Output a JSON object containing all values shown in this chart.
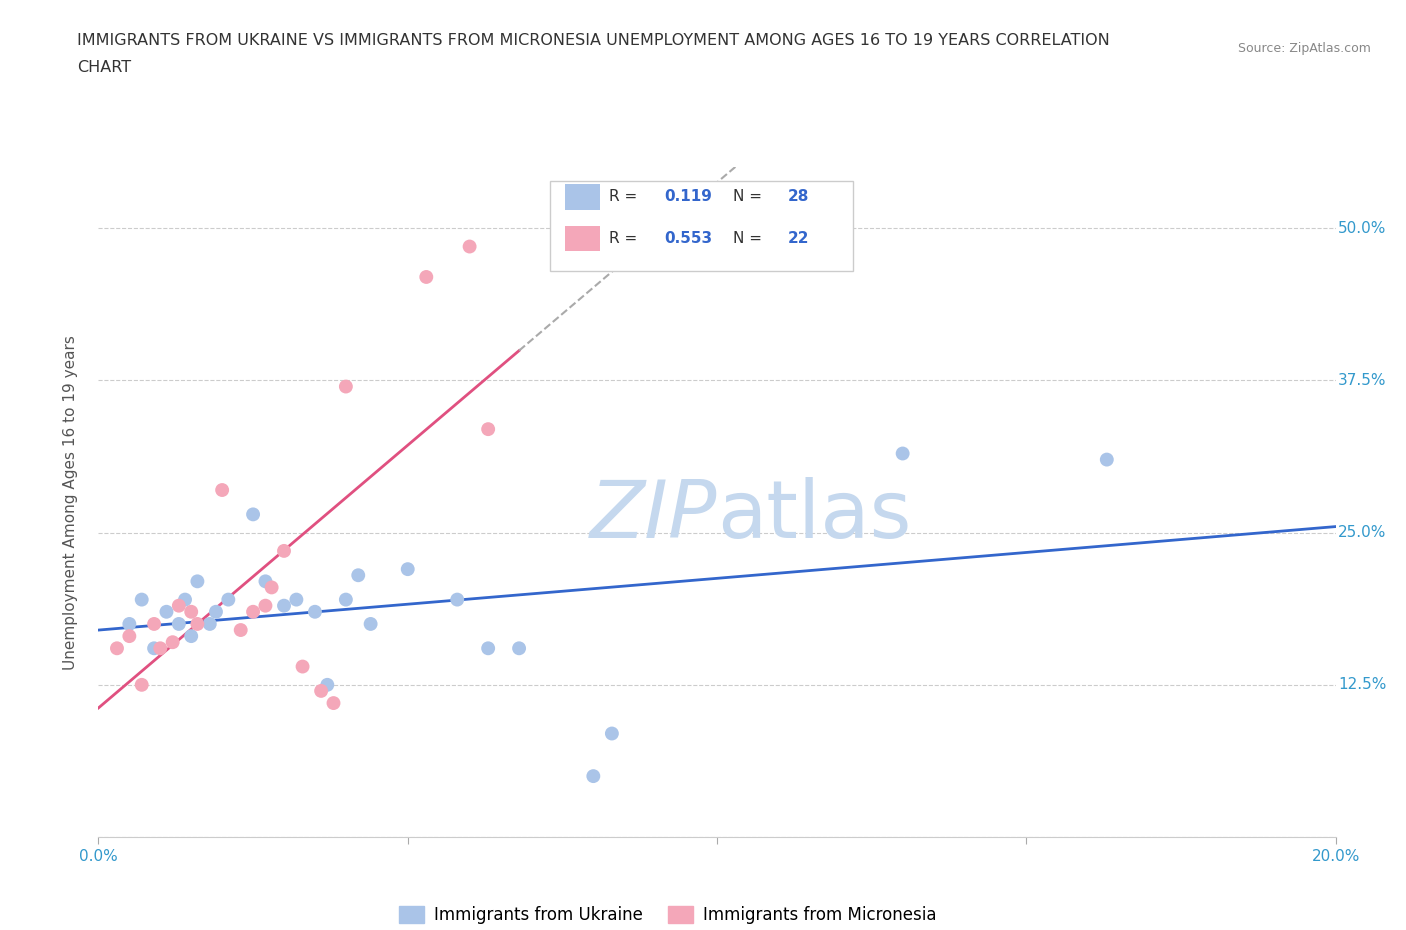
{
  "title_line1": "IMMIGRANTS FROM UKRAINE VS IMMIGRANTS FROM MICRONESIA UNEMPLOYMENT AMONG AGES 16 TO 19 YEARS CORRELATION",
  "title_line2": "CHART",
  "source": "Source: ZipAtlas.com",
  "ylabel": "Unemployment Among Ages 16 to 19 years",
  "xlim": [
    0.0,
    0.2
  ],
  "ylim": [
    0.0,
    0.55
  ],
  "xticks": [
    0.0,
    0.05,
    0.1,
    0.15,
    0.2
  ],
  "xticklabels": [
    "0.0%",
    "",
    "",
    "",
    "20.0%"
  ],
  "yticks": [
    0.0,
    0.125,
    0.25,
    0.375,
    0.5
  ],
  "yticklabels": [
    "",
    "12.5%",
    "25.0%",
    "37.5%",
    "50.0%"
  ],
  "grid_color": "#cccccc",
  "background_color": "#ffffff",
  "ukraine_color": "#aac4e8",
  "micronesia_color": "#f4a7b9",
  "ukraine_line_color": "#3366cc",
  "micronesia_line_color": "#e05080",
  "R_ukraine": "0.119",
  "N_ukraine": "28",
  "R_micronesia": "0.553",
  "N_micronesia": "22",
  "legend_label_ukraine": "Immigrants from Ukraine",
  "legend_label_micronesia": "Immigrants from Micronesia",
  "ukraine_x": [
    0.005,
    0.007,
    0.009,
    0.011,
    0.013,
    0.014,
    0.015,
    0.016,
    0.018,
    0.019,
    0.021,
    0.025,
    0.027,
    0.03,
    0.032,
    0.035,
    0.037,
    0.04,
    0.042,
    0.044,
    0.05,
    0.058,
    0.063,
    0.068,
    0.08,
    0.083,
    0.13,
    0.163
  ],
  "ukraine_y": [
    0.175,
    0.195,
    0.155,
    0.185,
    0.175,
    0.195,
    0.165,
    0.21,
    0.175,
    0.185,
    0.195,
    0.265,
    0.21,
    0.19,
    0.195,
    0.185,
    0.125,
    0.195,
    0.215,
    0.175,
    0.22,
    0.195,
    0.155,
    0.155,
    0.05,
    0.085,
    0.315,
    0.31
  ],
  "micronesia_x": [
    0.003,
    0.005,
    0.007,
    0.009,
    0.01,
    0.012,
    0.013,
    0.015,
    0.016,
    0.02,
    0.023,
    0.025,
    0.027,
    0.028,
    0.03,
    0.033,
    0.036,
    0.038,
    0.04,
    0.053,
    0.06,
    0.063
  ],
  "micronesia_y": [
    0.155,
    0.165,
    0.125,
    0.175,
    0.155,
    0.16,
    0.19,
    0.185,
    0.175,
    0.285,
    0.17,
    0.185,
    0.19,
    0.205,
    0.235,
    0.14,
    0.12,
    0.11,
    0.37,
    0.46,
    0.485,
    0.335
  ],
  "watermark_part1": "ZIP",
  "watermark_part2": "atlas",
  "watermark_color": "#c5d8ee",
  "watermark_fontsize": 58
}
